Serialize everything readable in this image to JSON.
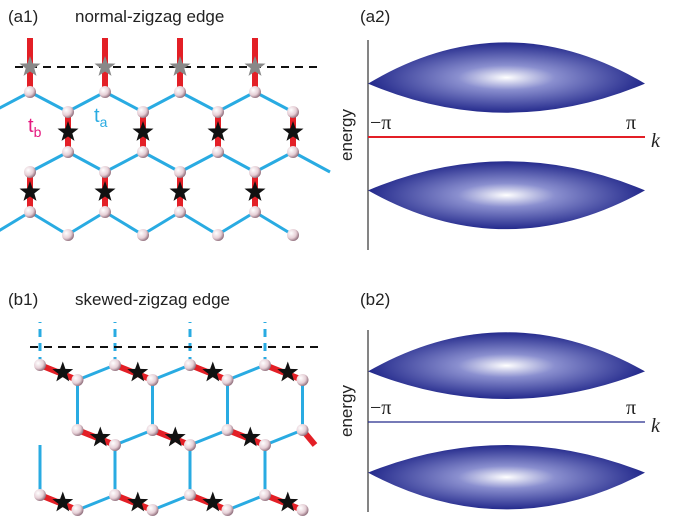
{
  "panels": [
    {
      "label": "(a1)",
      "title": "normal-zigzag edge",
      "t_a": {
        "base": "t",
        "sub": "a"
      },
      "t_b": {
        "base": "t",
        "sub": "b"
      }
    },
    {
      "label": "(a2)",
      "axis_label": "energy",
      "k_min": "−π",
      "k_max": "π",
      "k": "k"
    },
    {
      "label": "(b1)",
      "title": "skewed-zigzag edge"
    },
    {
      "label": "(b2)",
      "axis_label": "energy",
      "k_min": "−π",
      "k_max": "π",
      "k": "k"
    }
  ]
}
